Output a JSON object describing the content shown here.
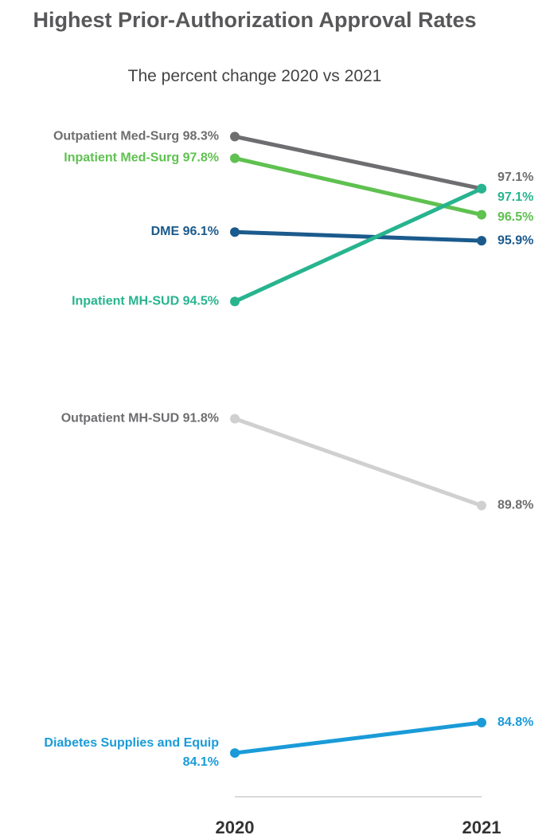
{
  "chart_data": {
    "type": "slope",
    "title": "Highest Prior-Authorization Approval Rates",
    "subtitle": "The percent change 2020 vs 2021",
    "categories": [
      "2020",
      "2021"
    ],
    "ylim": [
      83,
      99.5
    ],
    "series": [
      {
        "name": "Outpatient Med-Surg",
        "color": "#6e6d70",
        "label_color": "#6e6d70",
        "values": [
          98.3,
          97.1
        ],
        "value_labels": [
          "98.3%",
          "97.1%"
        ]
      },
      {
        "name": "Inpatient Med-Surg",
        "color": "#5fc150",
        "label_color": "#5fc150",
        "values": [
          97.8,
          96.5
        ],
        "value_labels": [
          "97.8%",
          "96.5%"
        ]
      },
      {
        "name": "DME",
        "color": "#1b5a8c",
        "label_color": "#1b5a8c",
        "values": [
          96.1,
          95.9
        ],
        "value_labels": [
          "96.1%",
          "95.9%"
        ]
      },
      {
        "name": "Inpatient MH-SUD",
        "color": "#27b48f",
        "label_color": "#27b48f",
        "values": [
          94.5,
          97.1
        ],
        "value_labels": [
          "94.5%",
          "97.1%"
        ]
      },
      {
        "name": "Outpatient MH-SUD",
        "color": "#d0d0d0",
        "label_color": "#6e6d70",
        "values": [
          91.8,
          89.8
        ],
        "value_labels": [
          "91.8%",
          "89.8%"
        ]
      },
      {
        "name": "Diabetes Supplies and Equip",
        "color": "#1a9bd8",
        "label_color": "#1a9bd8",
        "values": [
          84.1,
          84.8
        ],
        "value_labels": [
          "84.1%",
          "84.8%"
        ]
      }
    ]
  }
}
